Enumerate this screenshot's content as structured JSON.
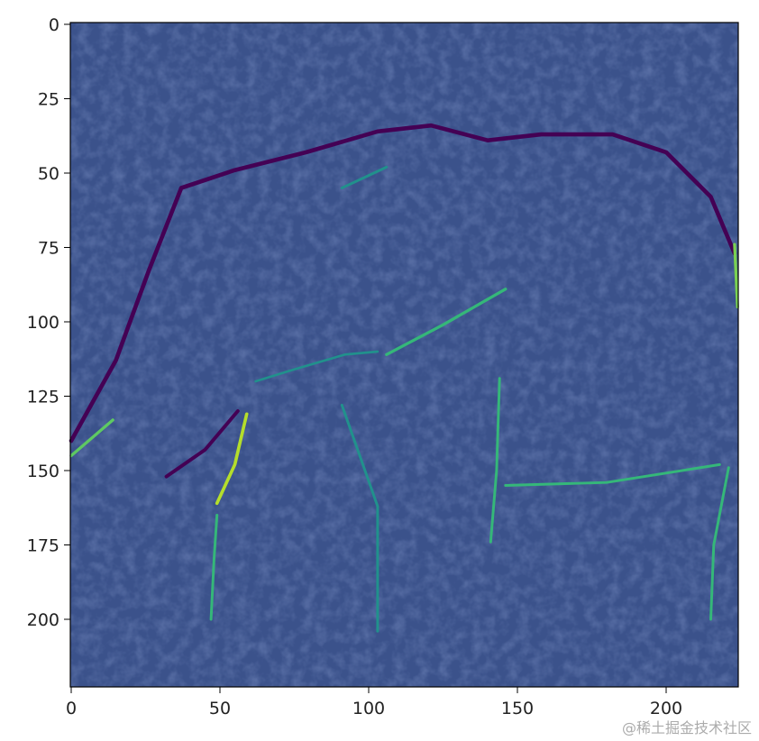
{
  "chart_data": {
    "type": "heatmap",
    "title": "",
    "xlabel": "",
    "ylabel": "",
    "image_size": [
      224,
      224
    ],
    "colormap": "viridis",
    "colors": {
      "low": "#440154",
      "mid": "#3b528b",
      "high_mid": "#21918c",
      "high": "#b5de2b"
    },
    "xlim": [
      0,
      223
    ],
    "ylim": [
      223,
      0
    ],
    "xticks": [
      0,
      50,
      100,
      150,
      200
    ],
    "yticks": [
      0,
      25,
      50,
      75,
      100,
      125,
      150,
      175,
      200
    ],
    "xtick_labels": [
      "0",
      "50",
      "100",
      "150",
      "200"
    ],
    "ytick_labels": [
      "0",
      "25",
      "50",
      "75",
      "100",
      "125",
      "150",
      "175",
      "200"
    ],
    "grid": false,
    "content": "edge-filtered elephant"
  },
  "watermark": "@稀土掘金技术社区"
}
